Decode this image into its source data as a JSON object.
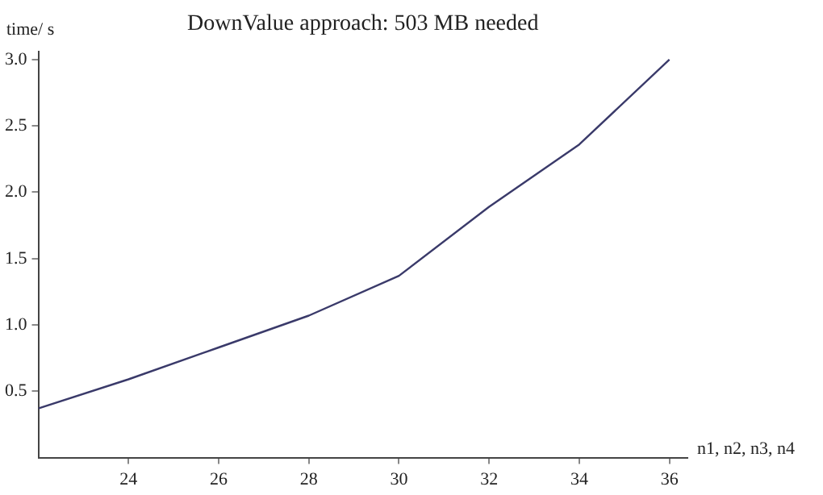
{
  "chart_data": {
    "type": "line",
    "title": "DownValue approach: 503 MB needed",
    "xlabel": "n1, n2, n3, n4",
    "ylabel": "time/ s",
    "x": [
      22,
      24,
      26,
      28,
      30,
      32,
      34,
      36
    ],
    "series": [
      {
        "color": "#3a3a6a",
        "values": [
          0.37,
          0.59,
          0.83,
          1.07,
          1.37,
          1.89,
          2.36,
          3.0
        ]
      }
    ],
    "xlim": [
      22,
      36.4
    ],
    "xticks": [
      24,
      26,
      28,
      30,
      32,
      34,
      36
    ],
    "ylim": [
      0,
      3.06
    ],
    "yticks": [
      {
        "value": 0.5,
        "label": "0.5"
      },
      {
        "value": 1,
        "label": "1.0"
      },
      {
        "value": 1.5,
        "label": "1.5"
      },
      {
        "value": 2,
        "label": "2.0"
      },
      {
        "value": 2.5,
        "label": "2.5"
      },
      {
        "value": 3,
        "label": "3.0"
      }
    ],
    "grid": false,
    "legend": false,
    "marker": "none",
    "line_style": "solid"
  }
}
